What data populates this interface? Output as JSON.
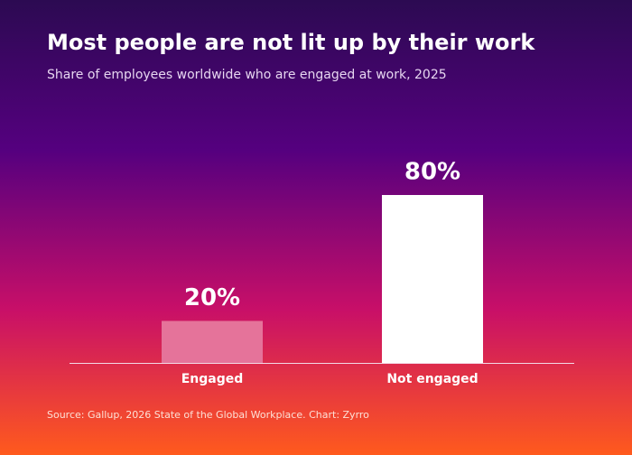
{
  "chart_data": {
    "type": "bar",
    "title": "Most people are not lit up by their work",
    "subtitle": "Share of employees worldwide who are engaged at work, 2025",
    "categories": [
      "Engaged",
      "Not engaged"
    ],
    "values": [
      20,
      80
    ],
    "value_labels": [
      "20%",
      "80%"
    ],
    "colors": [
      "#e5739a",
      "#ffffff"
    ],
    "source": "Source: Gallup, 2026 State of the Global Workplace.  Chart: Zyrro"
  }
}
